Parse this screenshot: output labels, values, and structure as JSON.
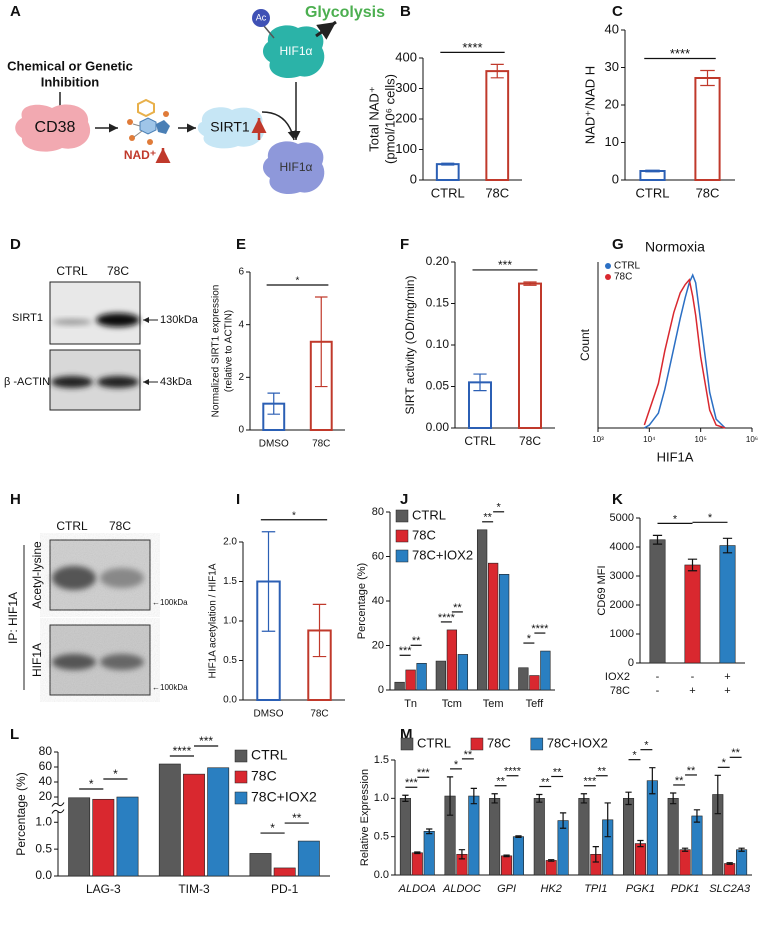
{
  "diagram": {
    "panel": "A",
    "inhibition": [
      "Chemical or Genetic",
      "Inhibition"
    ],
    "cd38": "CD38",
    "nad": "NAD⁺",
    "sirt1": "SIRT1",
    "hif1a_top": "HIF1α",
    "hif1a_bottom": "HIF1α",
    "ac": "Ac",
    "glycolysis": "Glycolysis"
  },
  "blot_d": {
    "panel": "D",
    "lanes": [
      "CTRL",
      "78C"
    ],
    "bands": [
      "SIRT1",
      "β -ACTIN"
    ],
    "sizes": [
      "130kDa",
      "43kDa"
    ]
  },
  "blot_h": {
    "panel": "H",
    "lanes": [
      "CTRL",
      "78C"
    ],
    "ip": "IP: HIF1A",
    "bands": [
      "Acetyl-lysine",
      "HIF1A"
    ],
    "sizes": [
      "←100kDa",
      "←100kDa"
    ]
  },
  "chart_data": [
    {
      "type": "bar",
      "panel": "B",
      "ylabel": [
        "Total NAD⁺",
        "(pmol/10⁶ cells)"
      ],
      "categories": [
        "CTRL",
        "78C"
      ],
      "values": [
        52,
        357
      ],
      "errors": [
        3,
        22
      ],
      "colors": [
        "#2b5fb4",
        "#c0392b"
      ],
      "style": "open",
      "ylim": [
        0,
        400
      ],
      "yticks": [
        0,
        100,
        200,
        300,
        400
      ],
      "annotations": [
        "****"
      ]
    },
    {
      "type": "bar",
      "panel": "C",
      "ylabel": "NAD⁺/NAD H",
      "categories": [
        "CTRL",
        "78C"
      ],
      "values": [
        2.4,
        27.2
      ],
      "errors": [
        0.2,
        2
      ],
      "colors": [
        "#2b5fb4",
        "#c0392b"
      ],
      "style": "open",
      "ylim": [
        0,
        40
      ],
      "yticks": [
        0,
        10,
        20,
        30,
        40
      ],
      "annotations": [
        "****"
      ]
    },
    {
      "type": "bar",
      "panel": "E",
      "ylabel": [
        "Normalized SIRT1 expression",
        "(relative to ACTIN)"
      ],
      "categories": [
        "DMSO",
        "78C"
      ],
      "values": [
        1.0,
        3.35
      ],
      "errors": [
        0.4,
        1.7
      ],
      "colors": [
        "#2b5fb4",
        "#c0392b"
      ],
      "style": "open",
      "ylim": [
        0,
        6
      ],
      "yticks": [
        0,
        2,
        4,
        6
      ],
      "annotations": [
        "*"
      ]
    },
    {
      "type": "bar",
      "panel": "F",
      "ylabel": "SIRT activity (OD/mg/min)",
      "categories": [
        "CTRL",
        "78C"
      ],
      "values": [
        0.055,
        0.174
      ],
      "errors": [
        0.01,
        0.002
      ],
      "colors": [
        "#2b5fb4",
        "#c0392b"
      ],
      "style": "open",
      "ylim": [
        0,
        0.2
      ],
      "yticks": [
        {
          "value": 0,
          "label": "0.00"
        },
        {
          "value": 0.05,
          "label": "0.05"
        },
        {
          "value": 0.1,
          "label": "0.10"
        },
        {
          "value": 0.15,
          "label": "0.15"
        },
        {
          "value": 0.2,
          "label": "0.20"
        }
      ],
      "annotations": [
        "***"
      ]
    },
    {
      "type": "line",
      "panel": "G",
      "title": "Normoxia",
      "xlabel": "HIF1A",
      "ylabel": "Count",
      "log_x": true,
      "legend": "upper left",
      "x": [
        8000,
        10000,
        15000,
        20000,
        30000,
        40000,
        50000,
        60000,
        70000,
        80000,
        100000,
        150000,
        200000,
        300000
      ],
      "xlim": [
        1000,
        1000000
      ],
      "xticks": [
        {
          "value": 1000,
          "label": "10³"
        },
        {
          "value": 10000,
          "label": "10⁴"
        },
        {
          "value": 100000,
          "label": "10⁵"
        },
        {
          "value": 1000000,
          "label": "10⁶"
        }
      ],
      "ylim": [
        0,
        280
      ],
      "series": [
        {
          "name": "CTRL",
          "color": "#2b6fc4",
          "values": [
            0,
            5,
            25,
            65,
            135,
            185,
            220,
            245,
            258,
            245,
            180,
            60,
            15,
            0
          ]
        },
        {
          "name": "78C",
          "color": "#d9282f",
          "values": [
            5,
            30,
            75,
            130,
            195,
            228,
            242,
            250,
            222,
            190,
            120,
            30,
            5,
            0
          ]
        }
      ]
    },
    {
      "type": "bar",
      "panel": "I",
      "ylabel": "HIF1A acetylation / HIF1A",
      "categories": [
        "DMSO",
        "78C"
      ],
      "values": [
        1.5,
        0.88
      ],
      "errors": [
        0.63,
        0.33
      ],
      "colors": [
        "#2b5fb4",
        "#c0392b"
      ],
      "style": "open",
      "ylim": [
        0,
        2
      ],
      "yticks": [
        {
          "value": 0,
          "label": "0.0"
        },
        {
          "value": 0.5,
          "label": "0.5"
        },
        {
          "value": 1,
          "label": "1.0"
        },
        {
          "value": 1.5,
          "label": "1.5"
        },
        {
          "value": 2,
          "label": "2.0"
        }
      ],
      "annotations": [
        "*"
      ]
    },
    {
      "type": "bar",
      "panel": "J",
      "ylabel": "Percentage (%)",
      "categories": [
        "Tn",
        "Tcm",
        "Tem",
        "Teff"
      ],
      "legend": "upper left",
      "style": "solid",
      "series": [
        {
          "name": "CTRL",
          "color": "#5a5a5a",
          "values": [
            3.5,
            13,
            72,
            10
          ]
        },
        {
          "name": "78C",
          "color": "#d9282f",
          "values": [
            9,
            27,
            57,
            6.5
          ]
        },
        {
          "name": "78C+IOX2",
          "color": "#2a7fc1",
          "values": [
            12,
            16,
            52,
            17.5
          ]
        }
      ],
      "ylim": [
        0,
        80
      ],
      "yticks": [
        0,
        20,
        40,
        60,
        80
      ],
      "annotations": [
        [
          "***",
          "**"
        ],
        [
          "****",
          "**"
        ],
        [
          "**",
          "*"
        ],
        [
          "*",
          "****"
        ]
      ]
    },
    {
      "type": "bar",
      "panel": "K",
      "ylabel": "CD69 MFI",
      "values": [
        4250,
        3380,
        4050
      ],
      "errors": [
        150,
        200,
        250
      ],
      "colors": [
        "#5a5a5a",
        "#d9282f",
        "#2a7fc1"
      ],
      "style": "solid",
      "ylim": [
        0,
        5000
      ],
      "yticks": [
        0,
        1000,
        2000,
        3000,
        4000,
        5000
      ],
      "annotations": [
        "*",
        "*"
      ],
      "rows": [
        {
          "label": "IOX2",
          "marks": [
            "-",
            "-",
            "+"
          ]
        },
        {
          "label": "78C",
          "marks": [
            "-",
            "+",
            "+"
          ]
        }
      ]
    },
    {
      "type": "bar",
      "panel": "L",
      "ylabel": "Percentage (%)",
      "categories": [
        "LAG-3",
        "TIM-3",
        "PD-1"
      ],
      "legend": "upper right",
      "style": "solid",
      "series": [
        {
          "name": "CTRL",
          "color": "#5a5a5a",
          "values": [
            19,
            64,
            0.42
          ]
        },
        {
          "name": "78C",
          "color": "#d9282f",
          "values": [
            17,
            50.5,
            0.15
          ]
        },
        {
          "name": "78C+IOX2",
          "color": "#2a7fc1",
          "values": [
            20,
            59,
            0.65
          ]
        }
      ],
      "ylim": [
        0,
        80
      ],
      "axis_break": [
        1.2,
        10
      ],
      "yticks": [
        {
          "value": 0,
          "label": "0.0"
        },
        {
          "value": 0.5,
          "label": "0.5"
        },
        {
          "value": 1,
          "label": "1.0"
        },
        20,
        40,
        60,
        80
      ],
      "annotations": [
        [
          "*",
          "*"
        ],
        [
          "****",
          "***"
        ],
        [
          "*",
          "**"
        ]
      ]
    },
    {
      "type": "bar",
      "panel": "M",
      "ylabel": "Relative Expression",
      "categories": [
        "ALDOA",
        "ALDOC",
        "GPI",
        "HK2",
        "TPI1",
        "PGK1",
        "PDK1",
        "SLC2A3"
      ],
      "italic_categories": true,
      "legend": "top",
      "style": "solid",
      "series": [
        {
          "name": "CTRL",
          "color": "#5a5a5a",
          "values": [
            1.0,
            1.03,
            1.0,
            1.0,
            1.0,
            1.0,
            1.0,
            1.05
          ],
          "errors": [
            0.04,
            0.25,
            0.06,
            0.05,
            0.06,
            0.08,
            0.07,
            0.25
          ]
        },
        {
          "name": "78C",
          "color": "#d9282f",
          "values": [
            0.29,
            0.27,
            0.25,
            0.19,
            0.27,
            0.41,
            0.33,
            0.15
          ],
          "errors": [
            0.01,
            0.06,
            0.01,
            0.01,
            0.1,
            0.04,
            0.02,
            0.01
          ]
        },
        {
          "name": "78C+IOX2",
          "color": "#2a7fc1",
          "values": [
            0.57,
            1.03,
            0.5,
            0.71,
            0.72,
            1.23,
            0.77,
            0.33
          ],
          "errors": [
            0.03,
            0.1,
            0.01,
            0.1,
            0.22,
            0.17,
            0.08,
            0.02
          ]
        }
      ],
      "ylim": [
        0,
        1.5
      ],
      "yticks": [
        {
          "value": 0,
          "label": "0.0"
        },
        {
          "value": 0.5,
          "label": "0.5"
        },
        {
          "value": 1,
          "label": "1.0"
        },
        {
          "value": 1.5,
          "label": "1.5"
        }
      ],
      "annotations": [
        [
          "***",
          "***"
        ],
        [
          "*",
          "**"
        ],
        [
          "**",
          "****"
        ],
        [
          "**",
          "**"
        ],
        [
          "***",
          "**"
        ],
        [
          "*",
          "*"
        ],
        [
          "**",
          "**"
        ],
        [
          "*",
          "**"
        ]
      ]
    }
  ]
}
